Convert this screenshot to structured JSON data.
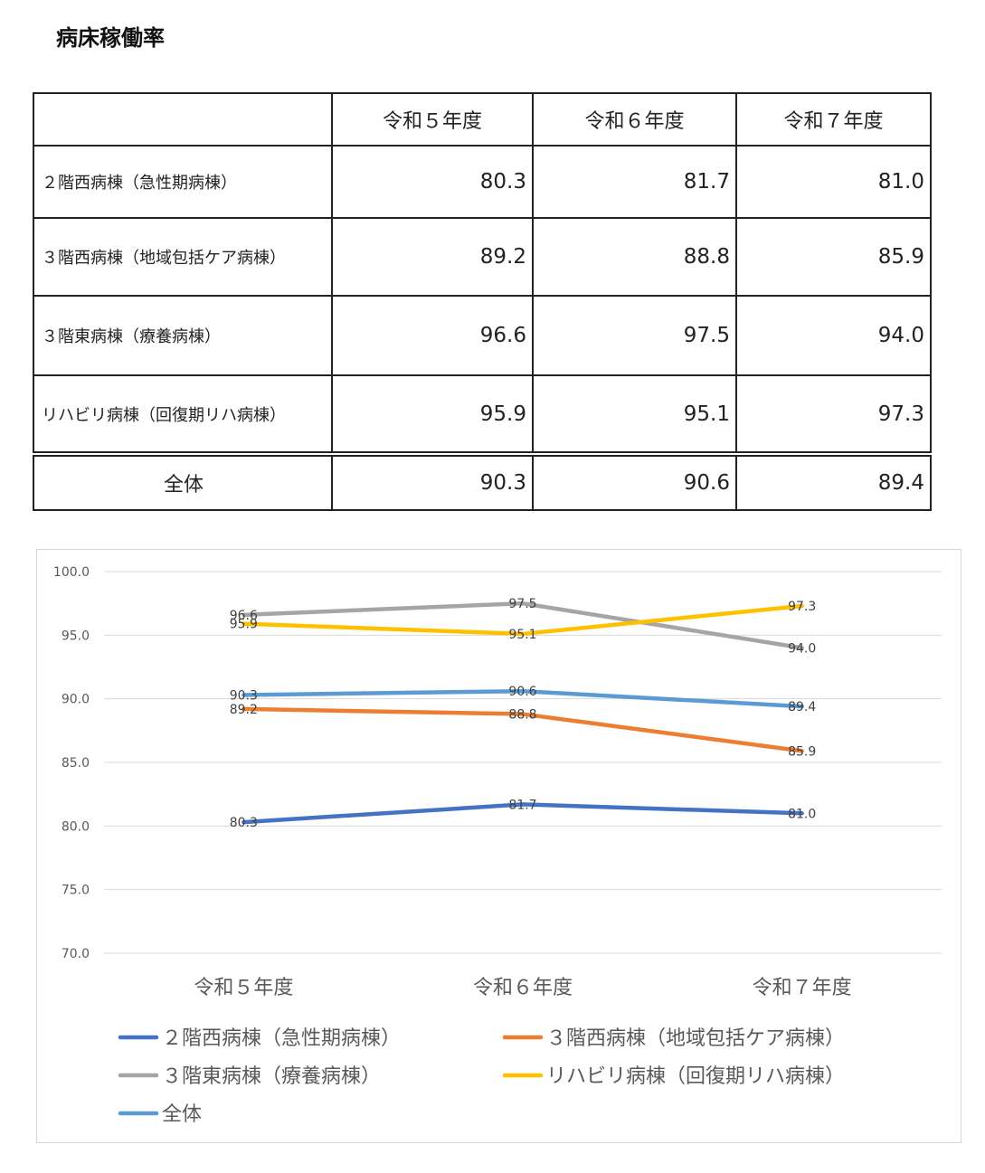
{
  "title": "病床稼働率",
  "table": {
    "headers": [
      "",
      "令和５年度",
      "令和６年度",
      "令和７年度"
    ],
    "rows": [
      {
        "label": "２階西病棟（急性期病棟）",
        "values": [
          "80.3",
          "81.7",
          "81.0"
        ]
      },
      {
        "label": "３階西病棟（地域包括ケア病棟）",
        "values": [
          "89.2",
          "88.8",
          "85.9"
        ]
      },
      {
        "label": "３階東病棟（療養病棟）",
        "values": [
          "96.6",
          "97.5",
          "94.0"
        ]
      },
      {
        "label": "リハビリ病棟（回復期リハ病棟）",
        "values": [
          "95.9",
          "95.1",
          "97.3"
        ]
      },
      {
        "label": "全体",
        "values": [
          "90.3",
          "90.6",
          "89.4"
        ]
      }
    ]
  },
  "chart_data": {
    "type": "line",
    "categories": [
      "令和５年度",
      "令和６年度",
      "令和７年度"
    ],
    "ylim": [
      70,
      100
    ],
    "yticks": [
      "100.0",
      "95.0",
      "90.0",
      "85.0",
      "80.0",
      "75.0",
      "70.0"
    ],
    "grid": true,
    "legend_position": "bottom",
    "series": [
      {
        "name": "２階西病棟（急性期病棟）",
        "values": [
          80.3,
          81.7,
          81.0
        ],
        "color": "#4472C4"
      },
      {
        "name": "３階西病棟（地域包括ケア病棟）",
        "values": [
          89.2,
          88.8,
          85.9
        ],
        "color": "#ED7D31"
      },
      {
        "name": "３階東病棟（療養病棟）",
        "values": [
          96.6,
          97.5,
          94.0
        ],
        "color": "#A5A5A5"
      },
      {
        "name": "リハビリ病棟（回復期リハ病棟）",
        "values": [
          95.9,
          95.1,
          97.3
        ],
        "color": "#FFC000"
      },
      {
        "name": "全体",
        "values": [
          90.3,
          90.6,
          89.4
        ],
        "color": "#5B9BD5"
      }
    ]
  }
}
